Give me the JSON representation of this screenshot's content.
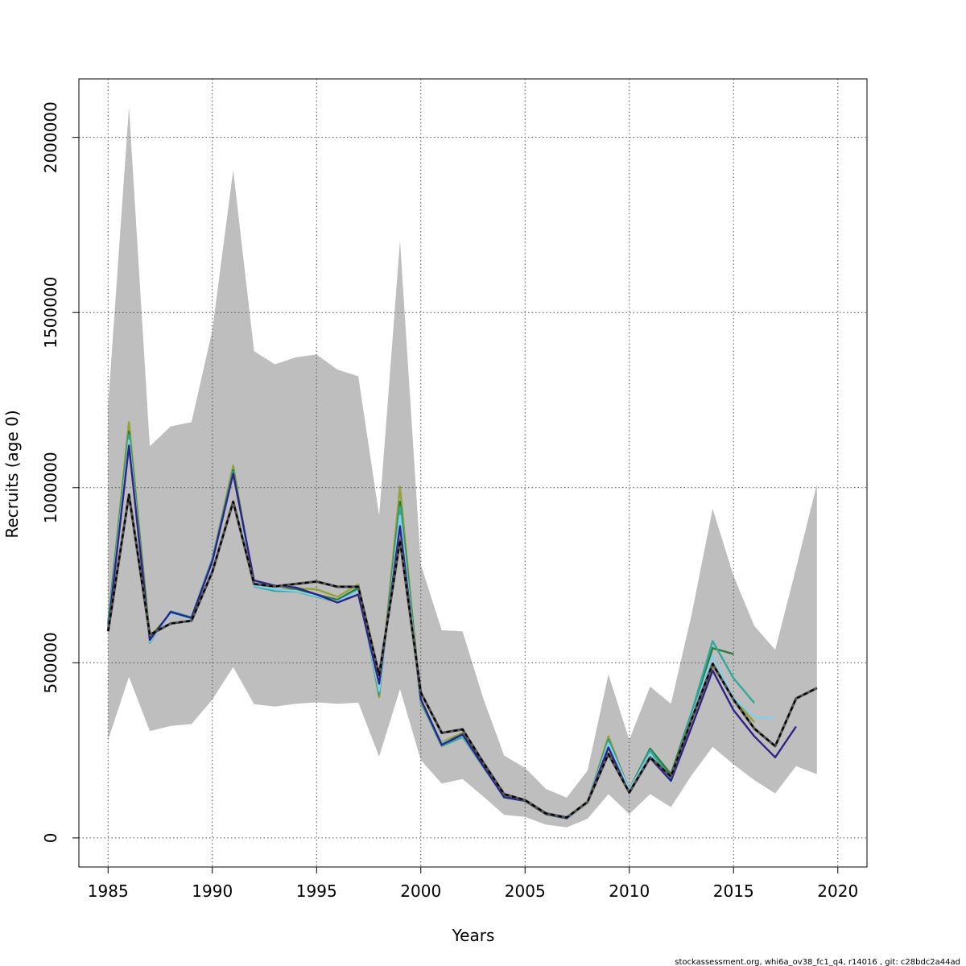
{
  "chart_data": {
    "type": "line",
    "xlabel": "Years",
    "ylabel": "Recruits (age 0)",
    "xlim": [
      1983.6,
      2021.4
    ],
    "ylim": [
      -83000,
      2167000
    ],
    "xticks": [
      1985,
      1990,
      1995,
      2000,
      2005,
      2010,
      2015,
      2020
    ],
    "yticks": [
      0,
      500000,
      1000000,
      1500000,
      2000000
    ],
    "xtick_labels": [
      "1985",
      "1990",
      "1995",
      "2000",
      "2005",
      "2010",
      "2015",
      "2020"
    ],
    "ytick_labels": [
      "0",
      "500000",
      "1000000",
      "1500000",
      "2000000"
    ],
    "grid": true,
    "confidence_band": {
      "color": "#bebebe",
      "x": [
        1985,
        1986,
        1987,
        1988,
        1989,
        1990,
        1991,
        1992,
        1993,
        1994,
        1995,
        1996,
        1997,
        1998,
        1999,
        2000,
        2001,
        2002,
        2003,
        2004,
        2005,
        2006,
        2007,
        2008,
        2009,
        2010,
        2011,
        2012,
        2013,
        2014,
        2015,
        2016,
        2017,
        2018,
        2019
      ],
      "lower": [
        280000,
        460000,
        305000,
        320000,
        325000,
        395000,
        488000,
        382000,
        375000,
        383000,
        387000,
        383000,
        386000,
        232000,
        425000,
        222000,
        155000,
        168000,
        118000,
        66000,
        60000,
        38000,
        30000,
        55000,
        125000,
        68000,
        125000,
        88000,
        180000,
        260000,
        210000,
        165000,
        127000,
        205000,
        182000
      ],
      "upper": [
        1235000,
        2087000,
        1118000,
        1175000,
        1187000,
        1450000,
        1907000,
        1390000,
        1352000,
        1372000,
        1380000,
        1337000,
        1318000,
        920000,
        1705000,
        780000,
        593000,
        590000,
        398000,
        235000,
        200000,
        140000,
        115000,
        192000,
        467000,
        280000,
        432000,
        383000,
        640000,
        940000,
        748000,
        605000,
        537000,
        770000,
        1010000
      ]
    },
    "series": [
      {
        "style": "retro-1",
        "color": "#94a23a",
        "x": [
          1985,
          1986,
          1987,
          1988,
          1989,
          1990,
          1991,
          1992,
          1993,
          1994,
          1995,
          1996,
          1997,
          1998,
          1999,
          2000,
          2001,
          2002,
          2003,
          2004,
          2005,
          2006,
          2007,
          2008,
          2009,
          2010,
          2011,
          2012,
          2013,
          2014,
          2015,
          2016
        ],
        "values": [
          615000,
          1187000,
          575000,
          640000,
          628000,
          795000,
          1063000,
          722000,
          708000,
          713000,
          710000,
          688000,
          724000,
          402000,
          1003000,
          383000,
          273000,
          300000,
          208000,
          115000,
          105000,
          67000,
          55000,
          100000,
          290000,
          135000,
          243000,
          173000,
          335000,
          490000,
          400000,
          330000
        ]
      },
      {
        "style": "retro-2",
        "color": "#2c7b3d",
        "x": [
          1985,
          1986,
          1987,
          1988,
          1989,
          1990,
          1991,
          1992,
          1993,
          1994,
          1995,
          1996,
          1997,
          1998,
          1999,
          2000,
          2001,
          2002,
          2003,
          2004,
          2005,
          2006,
          2007,
          2008,
          2009,
          2010,
          2011,
          2012,
          2013,
          2014,
          2015
        ],
        "values": [
          612000,
          1160000,
          568000,
          643000,
          627000,
          793000,
          1050000,
          720000,
          707000,
          710000,
          695000,
          680000,
          714000,
          410000,
          960000,
          395000,
          268000,
          296000,
          206000,
          118000,
          108000,
          70000,
          57000,
          102000,
          280000,
          138000,
          255000,
          182000,
          360000,
          542000,
          525000
        ]
      },
      {
        "style": "retro-3",
        "color": "#2fa99b",
        "x": [
          1985,
          1986,
          1987,
          1988,
          1989,
          1990,
          1991,
          1992,
          1993,
          1994,
          1995,
          1996,
          1997,
          1998,
          1999,
          2000,
          2001,
          2002,
          2003,
          2004,
          2005,
          2006,
          2007,
          2008,
          2009,
          2010,
          2011,
          2012,
          2013,
          2014,
          2015,
          2016
        ],
        "values": [
          608000,
          1150000,
          557000,
          647000,
          630000,
          797000,
          1045000,
          718000,
          705000,
          704000,
          688000,
          674000,
          708000,
          412000,
          945000,
          388000,
          262000,
          288000,
          203000,
          116000,
          106000,
          68000,
          56000,
          101000,
          278000,
          136000,
          250000,
          170000,
          360000,
          562000,
          456000,
          385000
        ]
      },
      {
        "style": "retro-4",
        "color": "#87ceeb",
        "x": [
          1985,
          1986,
          1987,
          1988,
          1989,
          1990,
          1991,
          1992,
          1993,
          1994,
          1995,
          1996,
          1997,
          1998,
          1999,
          2000,
          2001,
          2002,
          2003,
          2004,
          2005,
          2006,
          2007,
          2008,
          2009,
          2010,
          2011,
          2012,
          2013,
          2014,
          2015,
          2016,
          2017
        ],
        "values": [
          600000,
          1135000,
          560000,
          640000,
          625000,
          790000,
          1040000,
          720000,
          710000,
          705000,
          690000,
          675000,
          705000,
          420000,
          920000,
          392000,
          270000,
          292000,
          205000,
          115000,
          106000,
          68000,
          55000,
          102000,
          270000,
          138000,
          240000,
          160000,
          345000,
          520000,
          400000,
          345000,
          343000
        ]
      },
      {
        "style": "retro-5",
        "color": "#2e2386",
        "x": [
          1985,
          1986,
          1987,
          1988,
          1989,
          1990,
          1991,
          1992,
          1993,
          1994,
          1995,
          1996,
          1997,
          1998,
          1999,
          2000,
          2001,
          2002,
          2003,
          2004,
          2005,
          2006,
          2007,
          2008,
          2009,
          2010,
          2011,
          2012,
          2013,
          2014,
          2015,
          2016,
          2017,
          2018
        ],
        "values": [
          595000,
          1120000,
          565000,
          645000,
          628000,
          790000,
          1040000,
          735000,
          720000,
          715000,
          695000,
          672000,
          695000,
          440000,
          890000,
          395000,
          266000,
          295000,
          205000,
          116000,
          106000,
          68000,
          56000,
          103000,
          258000,
          128000,
          228000,
          163000,
          318000,
          478000,
          365000,
          290000,
          230000,
          318000
        ]
      },
      {
        "style": "base-run",
        "color": "#000000",
        "dashed": true,
        "x": [
          1985,
          1986,
          1987,
          1988,
          1989,
          1990,
          1991,
          1992,
          1993,
          1994,
          1995,
          1996,
          1997,
          1998,
          1999,
          2000,
          2001,
          2002,
          2003,
          2004,
          2005,
          2006,
          2007,
          2008,
          2009,
          2010,
          2011,
          2012,
          2013,
          2014,
          2015,
          2016,
          2017,
          2018,
          2019
        ],
        "values": [
          590000,
          980000,
          580000,
          612000,
          620000,
          760000,
          960000,
          725000,
          718000,
          725000,
          732000,
          717000,
          717000,
          465000,
          850000,
          415000,
          300000,
          310000,
          215000,
          125000,
          108000,
          70000,
          58000,
          103000,
          240000,
          130000,
          230000,
          175000,
          340000,
          497000,
          395000,
          312000,
          262000,
          398000,
          428000
        ]
      }
    ]
  },
  "footer": {
    "note": "stockassessment.org, whi6a_ov38_fc1_q4, r14016 , git: c28bdc2a44ad"
  }
}
